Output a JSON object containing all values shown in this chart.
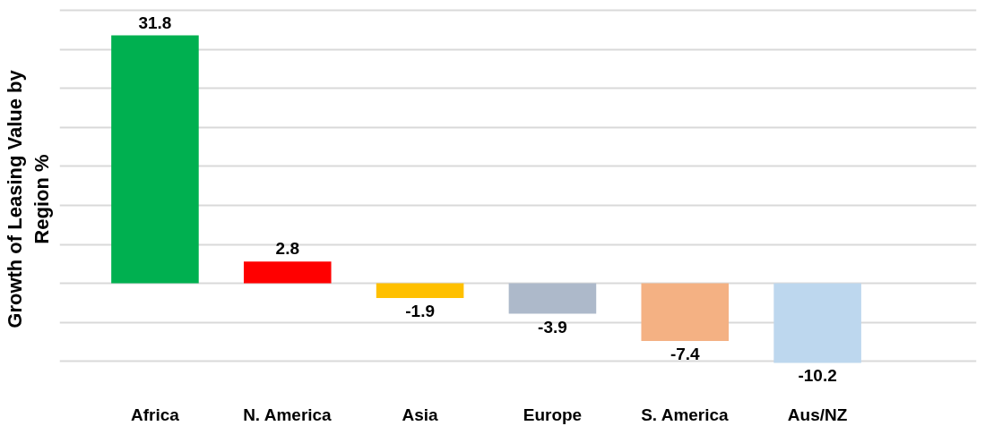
{
  "chart_data": {
    "type": "bar",
    "ylabel": "Growth of Leasing Value by Region %",
    "categories": [
      "Africa",
      "N. America",
      "Asia",
      "Europe",
      "S. America",
      "Aus/NZ"
    ],
    "values": [
      31.8,
      2.8,
      -1.9,
      -3.9,
      -7.4,
      -10.2
    ],
    "colors": [
      "#00b050",
      "#ff0000",
      "#ffc000",
      "#adb9ca",
      "#f4b183",
      "#bdd7ee"
    ],
    "grid": "y",
    "tick_labels": "x",
    "data_labels": true
  }
}
